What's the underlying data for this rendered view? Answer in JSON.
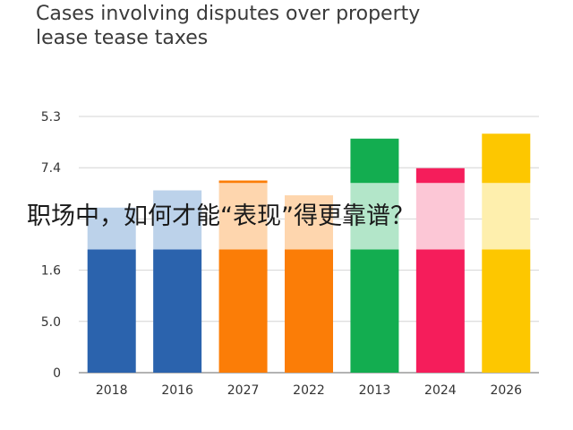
{
  "chart_data": {
    "type": "bar",
    "title": [
      "Cases involving disputes over property",
      "lease tease taxes"
    ],
    "xlabel": "",
    "ylabel": "",
    "y_tick_labels": [
      "0",
      "5.0",
      "1.6",
      "",
      "7.4",
      "5.3"
    ],
    "categories": [
      "2018",
      "2016",
      "2027",
      "2022",
      "2013",
      "2024",
      "2026"
    ],
    "series": [
      {
        "values": [
          2.5,
          2.5,
          2.5,
          2.5,
          2.5,
          2.5,
          2.5
        ]
      },
      {
        "values": [
          0.85,
          1.2,
          1.35,
          1.1,
          1.35,
          1.35,
          1.35
        ]
      },
      {
        "values": [
          0,
          0,
          0.05,
          0,
          0.9,
          0.3,
          1.0
        ]
      }
    ],
    "ylim": [
      0,
      5.2
    ],
    "grid": true,
    "colors": [
      "#2b63ad",
      "#2b63ad",
      "#fb7d07",
      "#fb7d07",
      "#13ad50",
      "#f51d5b",
      "#fdc700"
    ],
    "light_colors": [
      "#bcd2ea",
      "#bcd2ea",
      "#fed6ae",
      "#fed6ae",
      "#b3e6c9",
      "#fcc7d6",
      "#feefad"
    ]
  },
  "overlay_caption": "职场中，如何才能“表现”得更靠谱？"
}
